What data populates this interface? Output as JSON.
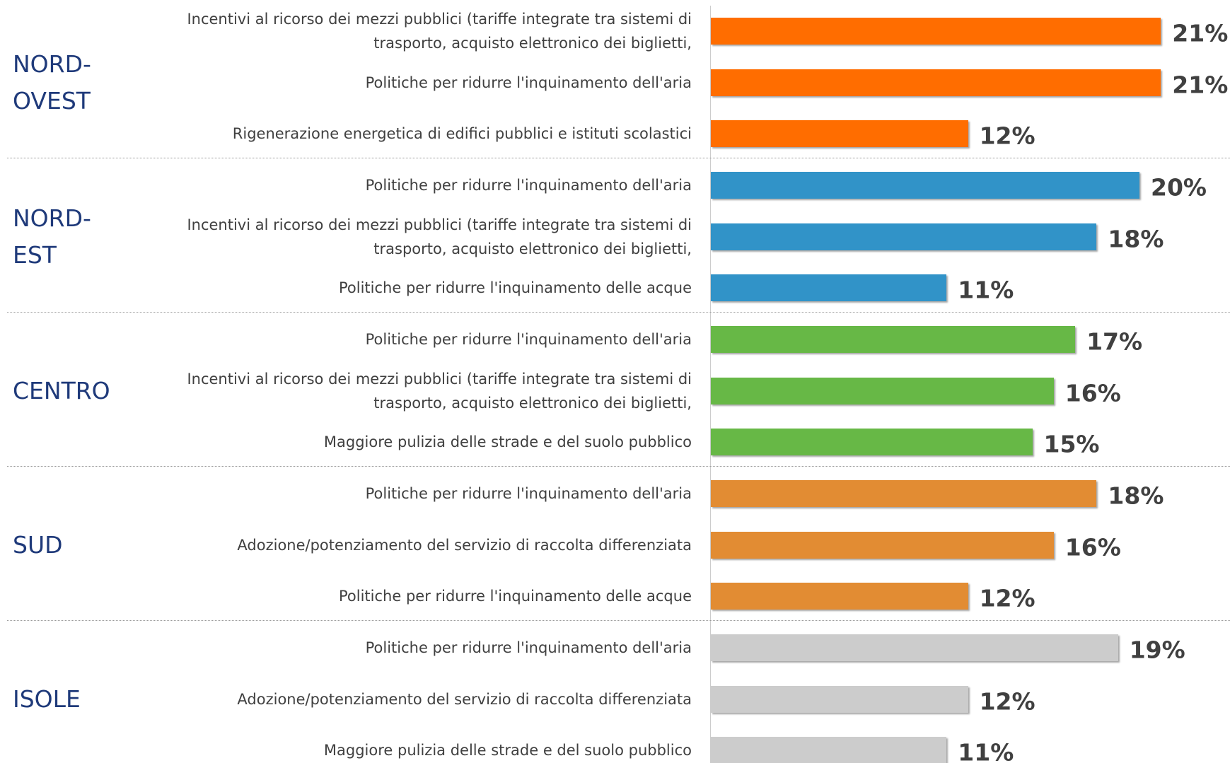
{
  "chart_data": {
    "type": "grouped-hbar",
    "groups": [
      {
        "name": "NORD-\nOVEST",
        "color": "#ff6d00",
        "categories": [
          "Incentivi al ricorso dei mezzi pubblici (tariffe integrate tra sistemi di\ntrasporto, acquisto elettronico dei biglietti,",
          "Politiche per ridurre l'inquinamento dell'aria",
          "Rigenerazione energetica di edifici pubblici e istituti scolastici"
        ],
        "values": [
          21,
          21,
          12
        ],
        "value_labels": [
          "21%",
          "21%",
          "12%"
        ]
      },
      {
        "name": "NORD-\nEST",
        "color": "#3193c8",
        "categories": [
          "Politiche per ridurre l'inquinamento dell'aria",
          "Incentivi al ricorso dei mezzi pubblici (tariffe integrate tra sistemi di\ntrasporto, acquisto elettronico dei biglietti,",
          "Politiche per ridurre l'inquinamento delle acque"
        ],
        "values": [
          20,
          18,
          11
        ],
        "value_labels": [
          "20%",
          "18%",
          "11%"
        ]
      },
      {
        "name": "CENTRO",
        "color": "#67b846",
        "categories": [
          "Politiche per ridurre l'inquinamento dell'aria",
          "Incentivi al ricorso dei mezzi pubblici (tariffe integrate tra sistemi di\ntrasporto, acquisto elettronico dei biglietti,",
          "Maggiore pulizia delle strade e del suolo pubblico"
        ],
        "values": [
          17,
          16,
          15
        ],
        "value_labels": [
          "17%",
          "16%",
          "15%"
        ]
      },
      {
        "name": "SUD",
        "color": "#e28c33",
        "categories": [
          "Politiche per ridurre l'inquinamento dell'aria",
          "Adozione/potenziamento del servizio di raccolta differenziata",
          "Politiche per ridurre l'inquinamento delle acque"
        ],
        "values": [
          18,
          16,
          12
        ],
        "value_labels": [
          "18%",
          "16%",
          "12%"
        ]
      },
      {
        "name": "ISOLE",
        "color": "#cccccc",
        "categories": [
          "Politiche per ridurre l'inquinamento dell'aria",
          "Adozione/potenziamento del servizio di raccolta differenziata",
          "Maggiore pulizia delle strade e del suolo pubblico"
        ],
        "values": [
          19,
          12,
          11
        ],
        "value_labels": [
          "19%",
          "12%",
          "11%"
        ]
      }
    ]
  }
}
